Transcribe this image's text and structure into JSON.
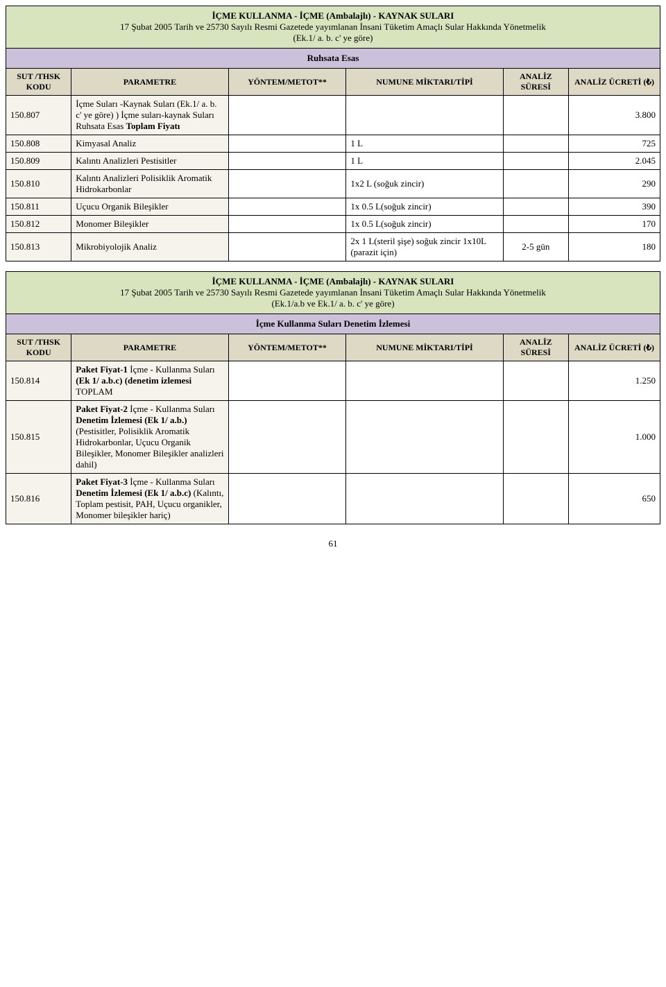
{
  "table1": {
    "title_bold": "İÇME KULLANMA - İÇME (Ambalajlı) - KAYNAK SULARI",
    "title_line2": "17 Şubat 2005 Tarih ve 25730 Sayılı Resmi Gazetede yayımlanan İnsani Tüketim Amaçlı Sular Hakkında Yönetmelik",
    "title_line3": "(Ek.1/ a. b. c' ye göre)",
    "subtitle": "Ruhsata Esas",
    "headers": {
      "col0": "SUT /THSK KODU",
      "col1": "PARAMETRE",
      "col2": "YÖNTEM/METOT**",
      "col3": "NUMUNE MİKTARI/TİPİ",
      "col4": "ANALİZ SÜRESİ",
      "col5": "ANALİZ ÜCRETİ (₺)"
    },
    "rows": [
      {
        "code": "150.807",
        "param_html": "İçme Suları -Kaynak Suları  (Ek.1/ a. b. c' ye göre) )  İçme suları-kaynak Suları Ruhsata Esas <b>Toplam Fiyatı</b>",
        "method": "",
        "sample": "",
        "dur": "",
        "price": "3.800"
      },
      {
        "code": "150.808",
        "param_html": "Kimyasal Analiz",
        "method": "",
        "sample": "1 L",
        "dur": "",
        "price": "725"
      },
      {
        "code": "150.809",
        "param_html": "Kalıntı Analizleri Pestisitler",
        "method": "",
        "sample": "1 L",
        "dur": "",
        "price": "2.045"
      },
      {
        "code": "150.810",
        "param_html": "Kalıntı Analizleri Polisiklik Aromatik Hidrokarbonlar",
        "method": "",
        "sample": "1x2 L (soğuk zincir)",
        "dur": "",
        "price": "290"
      },
      {
        "code": "150.811",
        "param_html": "Uçucu Organik Bileşikler",
        "method": "",
        "sample": "1x 0.5 L(soğuk zincir)",
        "dur": "",
        "price": "390"
      },
      {
        "code": "150.812",
        "param_html": "Monomer Bileşikler",
        "method": "",
        "sample": "1x 0.5 L(soğuk zincir)",
        "dur": "",
        "price": "170"
      },
      {
        "code": "150.813",
        "param_html": "Mikrobiyolojik Analiz",
        "method": "",
        "sample": "2x 1 L(steril şişe) soğuk zincir 1x10L  (parazit için)",
        "dur": "2-5 gün",
        "price": "180"
      }
    ]
  },
  "table2": {
    "title_bold": "İÇME KULLANMA - İÇME (Ambalajlı) - KAYNAK SULARI",
    "title_line2": "17 Şubat 2005 Tarih ve 25730 Sayılı Resmi Gazetede yayımlanan İnsani Tüketim Amaçlı Sular Hakkında Yönetmelik",
    "title_line3": "(Ek.1/a.b ve Ek.1/ a. b. c' ye göre)",
    "subtitle": "İçme Kullanma Suları Denetim İzlemesi",
    "headers": {
      "col0": "SUT /THSK KODU",
      "col1": "PARAMETRE",
      "col2": "YÖNTEM/METOT**",
      "col3": "NUMUNE MİKTARI/TİPİ",
      "col4": "ANALİZ SÜRESİ",
      "col5": "ANALİZ ÜCRETİ (₺)"
    },
    "rows": [
      {
        "code": "150.814",
        "param_html": "<b>Paket Fiyat-1</b> İçme - Kullanma Suları <b>(Ek 1/ a.b.c)  (denetim izlemesi</b> TOPLAM",
        "method": "",
        "sample": "",
        "dur": "",
        "price": "1.250"
      },
      {
        "code": "150.815",
        "param_html": "<b>Paket Fiyat-2</b> İçme - Kullanma Suları <b>Denetim İzlemesi (Ek 1/ a.b.)</b> (Pestisitler, Polisiklik Aromatik Hidrokarbonlar, Uçucu Organik Bileşikler, Monomer Bileşikler analizleri dahil)",
        "method": "",
        "sample": "",
        "dur": "",
        "price": "1.000"
      },
      {
        "code": "150.816",
        "param_html": "<b>Paket Fiyat-3</b> İçme - Kullanma Suları <b>Denetim İzlemesi (Ek 1/ a.b.c)</b> (Kalıntı, Toplam pestisit, PAH, Uçucu organikler, Monomer bileşikler hariç)",
        "method": "",
        "sample": "",
        "dur": "",
        "price": "650"
      }
    ]
  },
  "page_number": "61",
  "layout": {
    "col_widths_pct": [
      10,
      24,
      18,
      24,
      10,
      14
    ],
    "colors": {
      "title_bg": "#d7e4bd",
      "subtitle_bg": "#ccc1da",
      "header_bg": "#ddd9c4",
      "leftcols_bg": "#f5f3eb",
      "border": "#000000"
    }
  }
}
